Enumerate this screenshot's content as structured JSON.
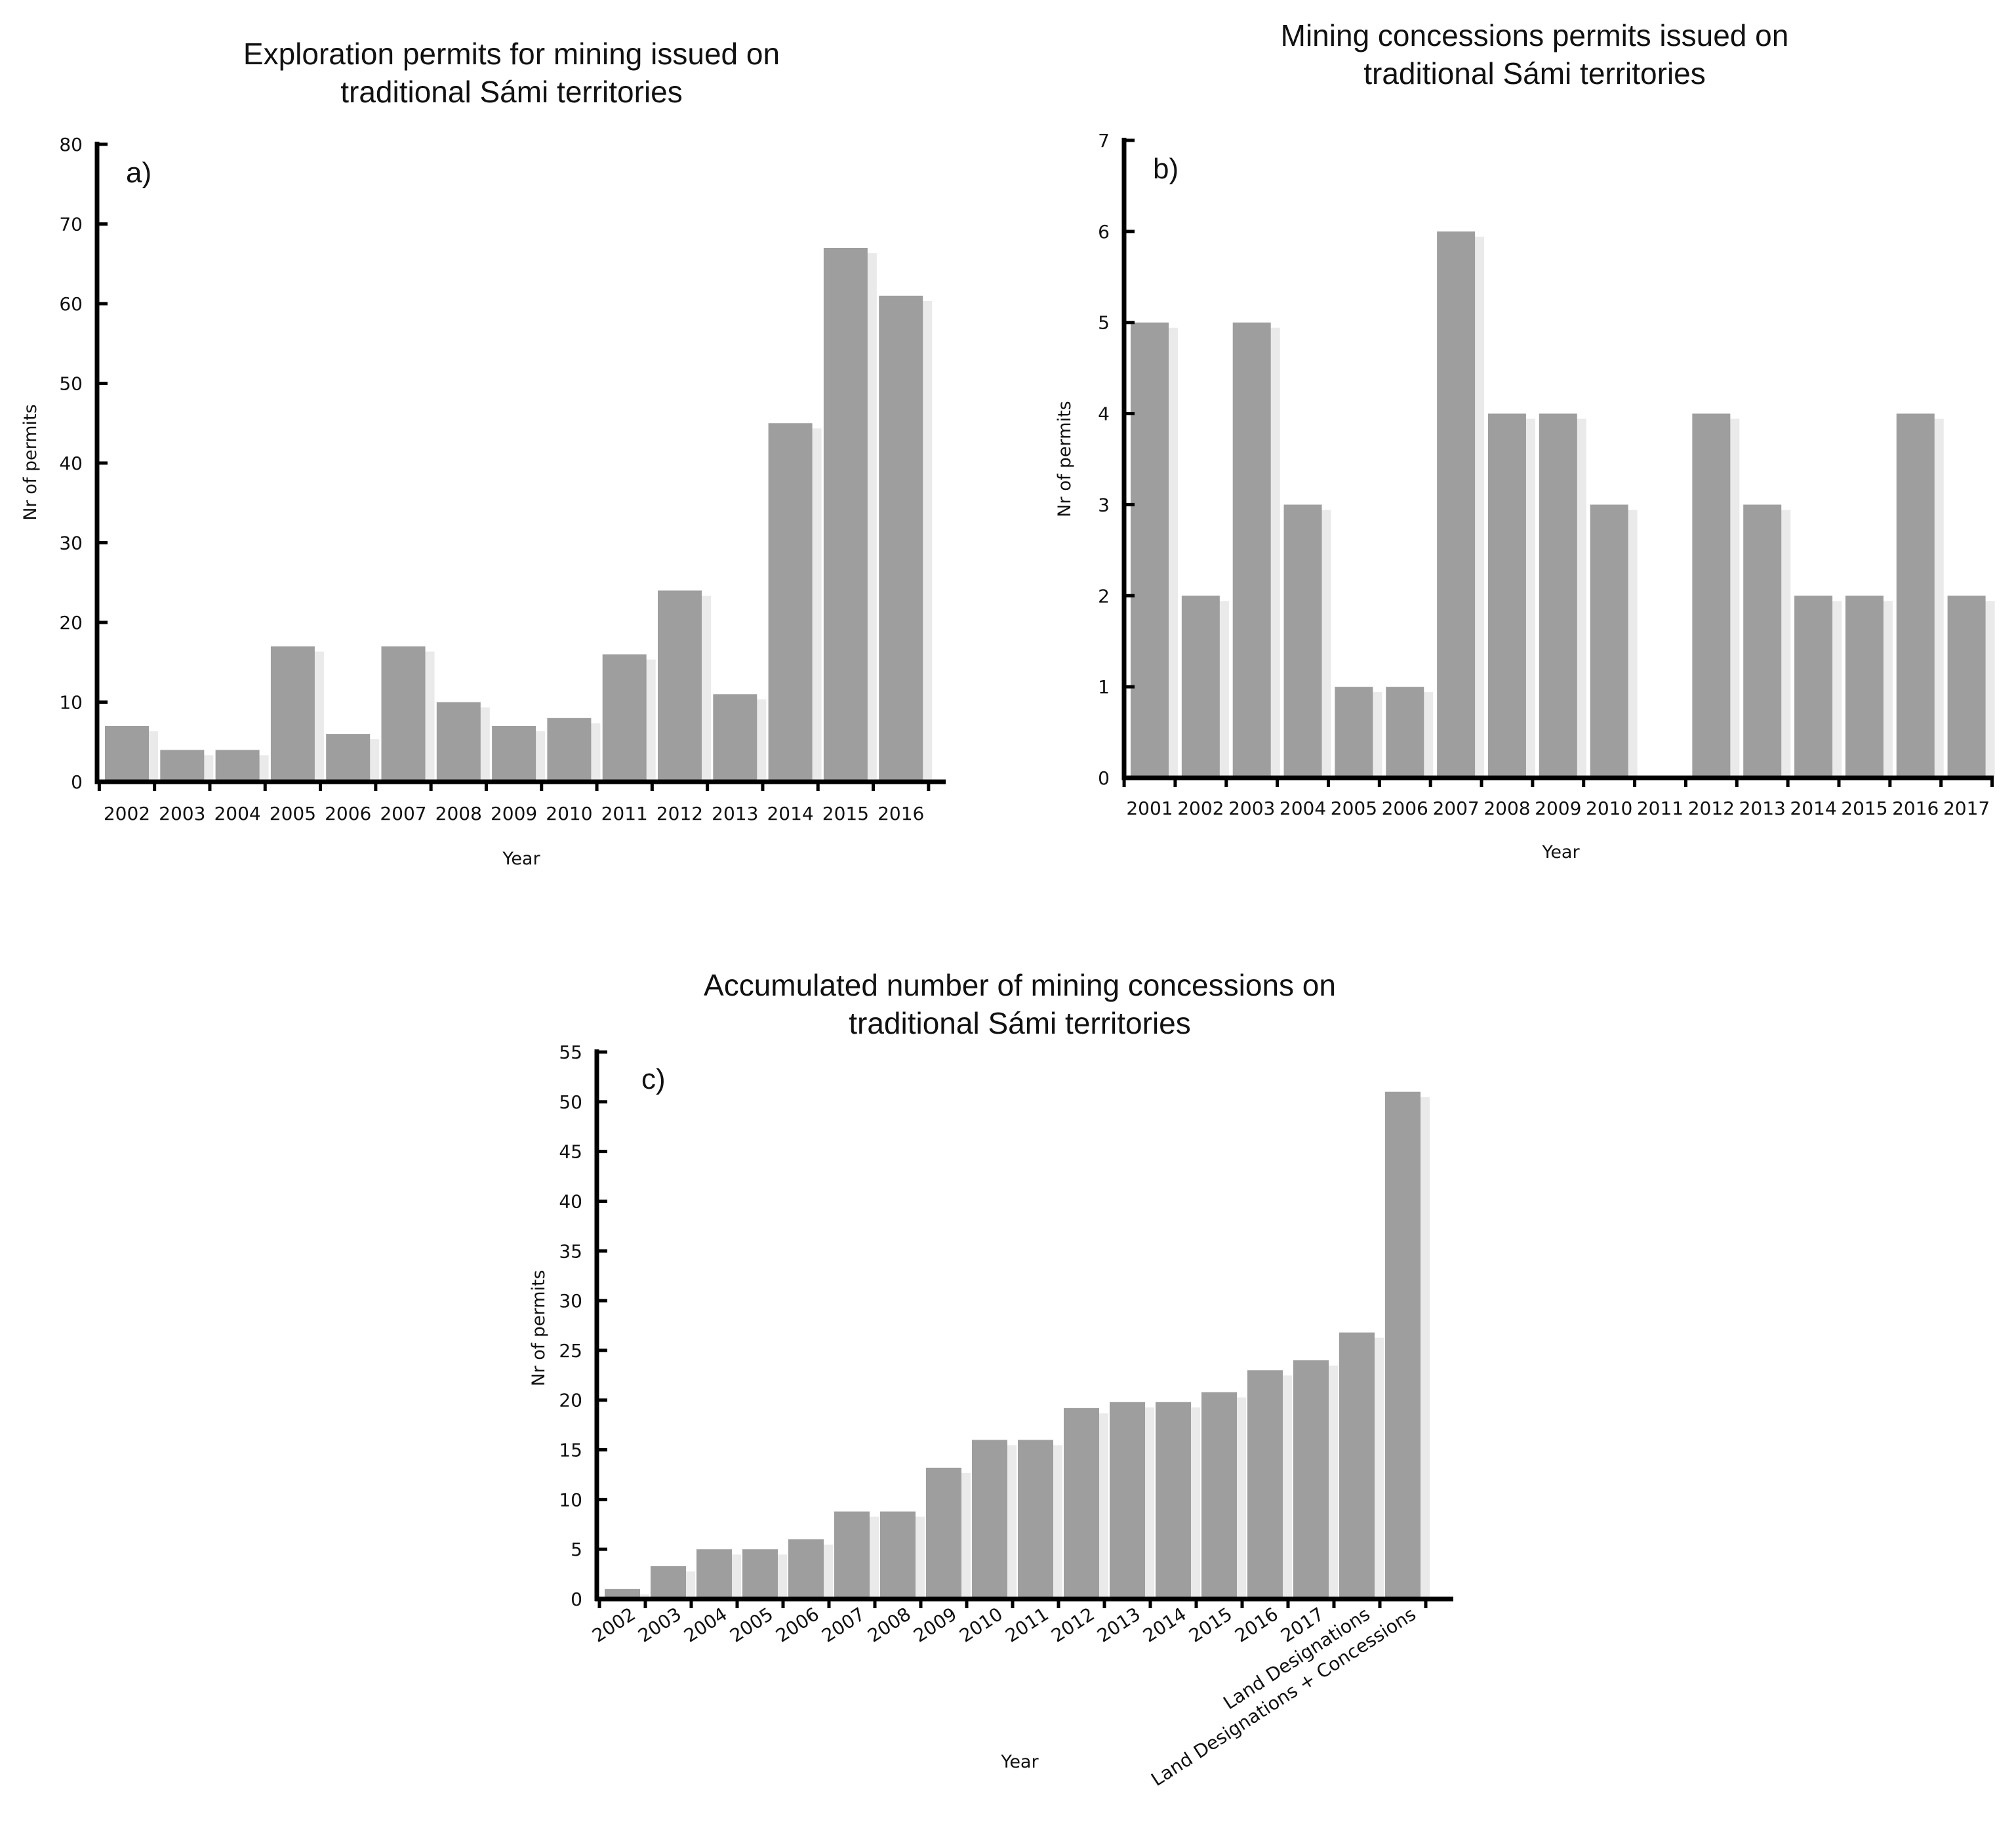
{
  "chart_data": [
    {
      "id": "a",
      "type": "bar",
      "panel_label": "a)",
      "title_lines": [
        "Exploration permits for mining issued on",
        "traditional Sámi territories"
      ],
      "xlabel": "Year",
      "ylabel": "Nr of permits",
      "ylim": [
        0,
        80
      ],
      "yticks": [
        0,
        10,
        20,
        30,
        40,
        50,
        60,
        70,
        80
      ],
      "categories": [
        "2002",
        "2003",
        "2004",
        "2005",
        "2006",
        "2007",
        "2008",
        "2009",
        "2010",
        "2011",
        "2012",
        "2013",
        "2014",
        "2015",
        "2016"
      ],
      "values": [
        7,
        4,
        4,
        17,
        6,
        17,
        10,
        7,
        8,
        16,
        24,
        11,
        45,
        67,
        61
      ],
      "grid": false,
      "bar_color": "#9e9e9e"
    },
    {
      "id": "b",
      "type": "bar",
      "panel_label": "b)",
      "title_lines": [
        "Mining concessions permits issued on",
        "traditional Sámi territories"
      ],
      "xlabel": "Year",
      "ylabel": "Nr of permits",
      "ylim": [
        0,
        7
      ],
      "yticks": [
        0,
        1,
        2,
        3,
        4,
        5,
        6,
        7
      ],
      "categories": [
        "2001",
        "2002",
        "2003",
        "2004",
        "2005",
        "2006",
        "2007",
        "2008",
        "2009",
        "2010",
        "2011",
        "2012",
        "2013",
        "2014",
        "2015",
        "2016",
        "2017"
      ],
      "values": [
        5,
        2,
        5,
        3,
        1,
        1,
        6,
        4,
        4,
        3,
        0,
        4,
        3,
        2,
        2,
        4,
        2
      ],
      "grid": false,
      "bar_color": "#9e9e9e"
    },
    {
      "id": "c",
      "type": "bar",
      "panel_label": "c)",
      "title_lines": [
        "Accumulated number of mining concessions on",
        "traditional Sámi territories"
      ],
      "xlabel": "Year",
      "ylabel": "Nr of permits",
      "ylim": [
        0,
        55
      ],
      "yticks": [
        0,
        5,
        10,
        15,
        20,
        25,
        30,
        35,
        40,
        45,
        50,
        55
      ],
      "categories": [
        "2002",
        "2003",
        "2004",
        "2005",
        "2006",
        "2007",
        "2008",
        "2009",
        "2010",
        "2011",
        "2012",
        "2013",
        "2014",
        "2015",
        "2016",
        "2017",
        "Land Designations",
        "Land Designations + Concessions"
      ],
      "values": [
        1,
        3.3,
        5,
        5,
        6,
        8.8,
        8.8,
        13.2,
        16,
        16,
        19.2,
        19.8,
        19.8,
        20.8,
        23,
        24,
        26.8,
        51
      ],
      "grid": false,
      "rotated_tick_labels": true,
      "bar_color": "#9e9e9e"
    }
  ]
}
